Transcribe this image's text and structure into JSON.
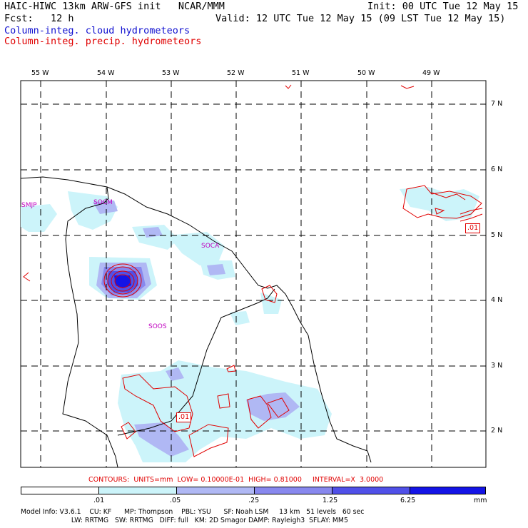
{
  "header": {
    "title": "HAIC-HIWC 13km ARW-GFS init   NCAR/MMM",
    "init": "Init: 00 UTC Tue 12 May 15",
    "fcst": "Fcst:   12 h",
    "valid": "Valid: 12 UTC Tue 12 May 15 (09 LST Tue 12 May 15)",
    "field1": "Column-integ. cloud hydrometeors",
    "field2": "Column-integ. precip. hydrometeors"
  },
  "map": {
    "lon_labels": [
      "55 W",
      "54 W",
      "53 W",
      "52 W",
      "51 W",
      "50 W",
      "49 W"
    ],
    "lat_labels": [
      "7 N",
      "6 N",
      "5 N",
      "4 N",
      "3 N",
      "2 N"
    ],
    "stations": [
      "SMJP",
      "SOCM",
      "SOCA",
      "SOOS"
    ],
    "contour_labels": [
      ".01",
      ".01"
    ]
  },
  "contours_line": "CONTOURS:  UNITS=mm  LOW= 0.10000E-01  HIGH= 0.81000     INTERVAL=X  3.0000",
  "legend": {
    "ticks": [
      ".01",
      ".05",
      ".25",
      "1.25",
      "6.25"
    ],
    "units": "mm",
    "colors": [
      "#ffffff",
      "#ccf4fa",
      "#b0b8f4",
      "#8888ee",
      "#5050e8",
      "#1414e6"
    ]
  },
  "colors": {
    "cloud": "#1010d0",
    "precip": "#e00000",
    "station": "#c000c0"
  },
  "model_info": {
    "line1": "Model Info: V3.6.1    CU: KF      MP: Thompson    PBL: YSU      SF: Noah LSM     13 km   51 levels   60 sec",
    "line2": "                        LW: RRTMG   SW: RRTMG   DIFF: full   KM: 2D Smagor DAMP: Rayleigh3  SFLAY: MM5"
  }
}
